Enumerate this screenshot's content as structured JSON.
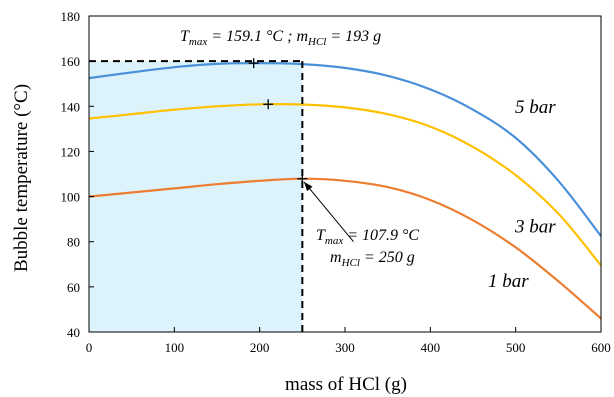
{
  "chart_data": {
    "type": "line",
    "xlabel": "mass of HCl (g)",
    "ylabel": "Bubble temperature (°C)",
    "xlim": [
      0,
      600
    ],
    "ylim": [
      40,
      180
    ],
    "x_ticks": [
      "0",
      "100",
      "200",
      "300",
      "400",
      "500",
      "600"
    ],
    "y_ticks": [
      "40",
      "60",
      "80",
      "100",
      "120",
      "140",
      "160",
      "180"
    ],
    "grid": false,
    "x": [
      0,
      50,
      100,
      150,
      200,
      250,
      300,
      350,
      400,
      450,
      500,
      550,
      600
    ],
    "series": [
      {
        "name": "1 bar",
        "color": "#ED7D31",
        "values": [
          100,
          101.8,
          103.6,
          105.5,
          107,
          107.9,
          107,
          104.2,
          98.5,
          89.5,
          77.5,
          62.5,
          46
        ]
      },
      {
        "name": "3 bar",
        "color": "#FFC000",
        "values": [
          134.6,
          136.5,
          138.5,
          140,
          140.9,
          140.8,
          139.5,
          136.5,
          131,
          122,
          109.5,
          92.5,
          69.5
        ]
      },
      {
        "name": "5 bar",
        "color": "#4A90D9",
        "values": [
          152.5,
          155,
          157.3,
          158.8,
          159.1,
          158.7,
          157,
          153.5,
          147.5,
          138.5,
          126,
          107,
          82.5
        ]
      }
    ],
    "maxima": [
      {
        "x": 193,
        "y": 159.1
      },
      {
        "x": 210,
        "y": 140.9
      },
      {
        "x": 250,
        "y": 107.9
      }
    ],
    "shaded_region": {
      "x": [
        0,
        250
      ],
      "y": [
        40,
        160
      ],
      "color": "#DCF3FB"
    },
    "dashed_lines": [
      {
        "from": [
          0,
          160
        ],
        "to": [
          250,
          160
        ]
      },
      {
        "from": [
          250,
          40
        ],
        "to": [
          250,
          160
        ]
      }
    ],
    "annotations": {
      "top": {
        "t_sym": "T",
        "t_sub": "max",
        "t_value": " = 159.1 °C ; ",
        "m_sym": "m",
        "m_sub": "HCl",
        "m_value": " = 193 g"
      },
      "bottom_line1": {
        "t_sym": "T",
        "t_sub": "max",
        "t_value": " = 107.9 °C"
      },
      "bottom_line2": {
        "m_sym": "m",
        "m_sub": "HCl",
        "m_value": " = 250 g"
      },
      "arrow": {
        "from": [
          310,
          80
        ],
        "to": [
          252,
          106.5
        ]
      }
    }
  }
}
